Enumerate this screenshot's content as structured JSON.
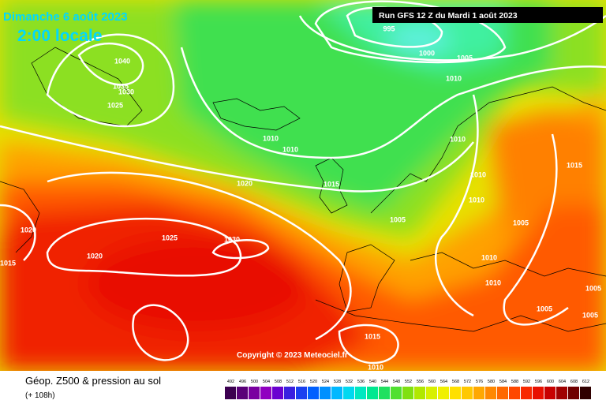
{
  "header": {
    "date": "Dimanche 6 août 2023",
    "time": "2:00 locale",
    "run": "Run GFS 12 Z du Mardi 1 août 2023"
  },
  "isobar_labels": [
    "995",
    "1000",
    "1005",
    "1010",
    "1040",
    "1035",
    "1030",
    "1025",
    "1010",
    "1010",
    "1010",
    "1010",
    "1020",
    "1015",
    "1010",
    "1005",
    "1005",
    "1015",
    "1020",
    "1015",
    "1020",
    "1025",
    "1030",
    "1010",
    "1010",
    "1005",
    "1005",
    "1005",
    "1015",
    "1010"
  ],
  "copyright": "Copyright © 2023 Meteociel.fr",
  "legend": {
    "title": "Géop. Z500 & pression au sol",
    "lead": "(+ 108h)",
    "scale": [
      492,
      496,
      500,
      504,
      508,
      512,
      516,
      520,
      524,
      528,
      532,
      536,
      540,
      544,
      548,
      552,
      556,
      560,
      564,
      568,
      572,
      576,
      580,
      584,
      588,
      592,
      596,
      600,
      604,
      608,
      612
    ]
  }
}
